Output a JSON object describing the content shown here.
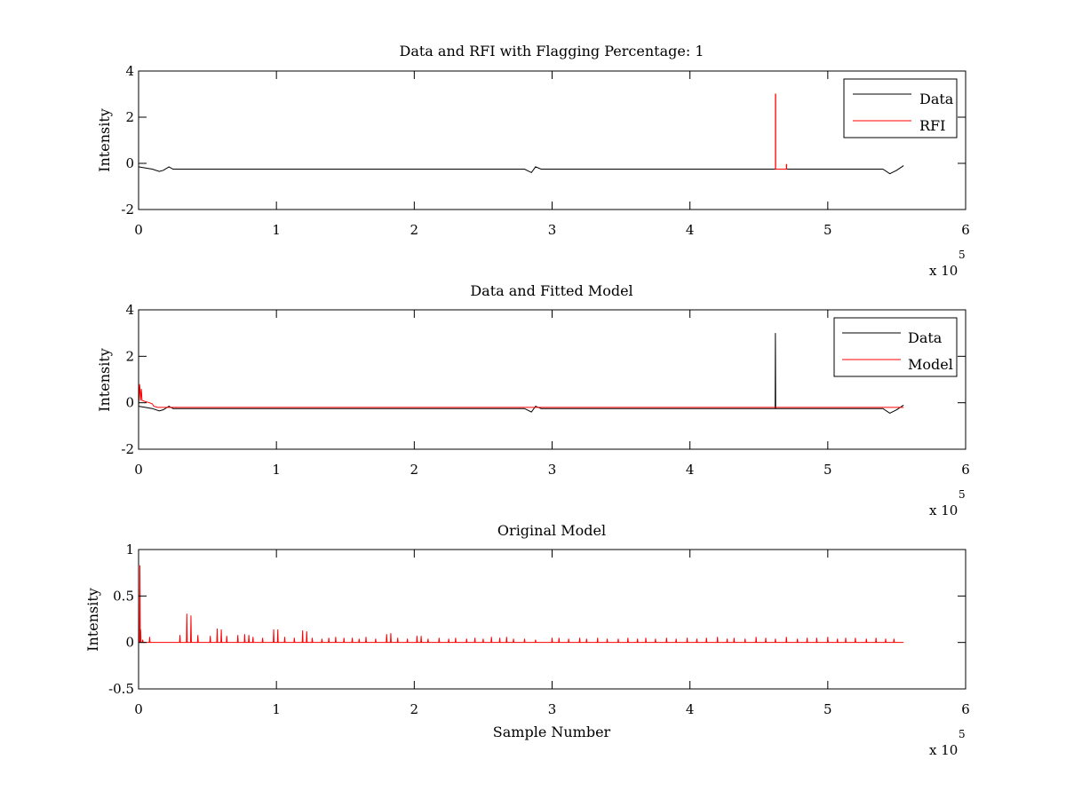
{
  "figure": {
    "background": "#ffffff"
  },
  "chart_data": [
    {
      "type": "line",
      "title": "Data and RFI with Flagging Percentage: 1",
      "xlabel": "",
      "ylabel": "Intensity",
      "xlim": [
        0,
        600000
      ],
      "ylim": [
        -2,
        4
      ],
      "xticks": [
        0,
        1,
        2,
        3,
        4,
        5,
        6
      ],
      "yticks": [
        -2,
        0,
        2,
        4
      ],
      "x_multiplier": "x 10",
      "x_multiplier_exp": "5",
      "grid": false,
      "legend": "top-right",
      "series": [
        {
          "name": "Data",
          "color": "#000000",
          "x": [
            0,
            5000,
            10000,
            15000,
            18000,
            22000,
            25000,
            60000,
            100000,
            150000,
            200000,
            250000,
            280000,
            285000,
            288000,
            292000,
            300000,
            350000,
            400000,
            450000,
            500000,
            540000,
            545000,
            550000,
            555000
          ],
          "y": [
            -0.15,
            -0.2,
            -0.25,
            -0.35,
            -0.3,
            -0.15,
            -0.25,
            -0.25,
            -0.25,
            -0.25,
            -0.25,
            -0.25,
            -0.25,
            -0.4,
            -0.15,
            -0.25,
            -0.25,
            -0.25,
            -0.25,
            -0.25,
            -0.25,
            -0.25,
            -0.45,
            -0.3,
            -0.1
          ]
        },
        {
          "name": "RFI",
          "color": "#ff0000",
          "x": [
            462000,
            462000,
            462200,
            462200,
            470000,
            470000,
            470200,
            470200
          ],
          "y": [
            -0.25,
            3.0,
            3.0,
            -0.25,
            -0.25,
            -0.05,
            -0.05,
            -0.25
          ]
        }
      ]
    },
    {
      "type": "line",
      "title": "Data and Fitted Model",
      "xlabel": "",
      "ylabel": "Intensity",
      "xlim": [
        0,
        600000
      ],
      "ylim": [
        -2,
        4
      ],
      "xticks": [
        0,
        1,
        2,
        3,
        4,
        5,
        6
      ],
      "yticks": [
        -2,
        0,
        2,
        4
      ],
      "x_multiplier": "x 10",
      "x_multiplier_exp": "5",
      "grid": false,
      "legend": "top-right",
      "series": [
        {
          "name": "Data",
          "color": "#000000",
          "x": [
            0,
            5000,
            10000,
            15000,
            18000,
            22000,
            25000,
            100000,
            200000,
            280000,
            285000,
            288000,
            292000,
            400000,
            461800,
            462000,
            462200,
            462400,
            500000,
            540000,
            545000,
            550000,
            555000
          ],
          "y": [
            -0.15,
            -0.2,
            -0.25,
            -0.35,
            -0.3,
            -0.15,
            -0.25,
            -0.25,
            -0.25,
            -0.25,
            -0.4,
            -0.15,
            -0.25,
            -0.25,
            -0.25,
            3.0,
            -0.25,
            -0.25,
            -0.25,
            -0.25,
            -0.45,
            -0.3,
            -0.1
          ]
        },
        {
          "name": "Model",
          "color": "#ff0000",
          "x": [
            0,
            800,
            1500,
            2000,
            2500,
            5000,
            8000,
            10000,
            11000,
            14000,
            20000,
            60000,
            100000,
            200000,
            300000,
            400000,
            500000,
            555000
          ],
          "y": [
            -0.2,
            0.8,
            0.1,
            0.6,
            0.1,
            0.05,
            0.0,
            -0.05,
            -0.15,
            -0.2,
            -0.2,
            -0.2,
            -0.2,
            -0.2,
            -0.2,
            -0.2,
            -0.2,
            -0.2
          ]
        }
      ]
    },
    {
      "type": "line",
      "title": "Original Model",
      "xlabel": "Sample Number",
      "ylabel": "Intensity",
      "xlim": [
        0,
        600000
      ],
      "ylim": [
        -0.5,
        1
      ],
      "xticks": [
        0,
        1,
        2,
        3,
        4,
        5,
        6
      ],
      "yticks": [
        -0.5,
        0,
        0.5,
        1
      ],
      "x_multiplier": "x 10",
      "x_multiplier_exp": "5",
      "grid": false,
      "legend": "none",
      "series": [
        {
          "color": "#ff0000",
          "x_range": [
            0,
            555000
          ],
          "baseline": 0,
          "spikes_x": [
            1000,
            1500,
            3000,
            8000,
            30000,
            35000,
            38000,
            43000,
            52000,
            57000,
            60000,
            64000,
            72000,
            77000,
            80000,
            83000,
            90000,
            98000,
            101000,
            106000,
            113000,
            119000,
            122000,
            126000,
            133000,
            138000,
            143000,
            149000,
            155000,
            160000,
            165000,
            172000,
            180000,
            183000,
            188000,
            195000,
            202000,
            205000,
            210000,
            218000,
            225000,
            230000,
            238000,
            244000,
            250000,
            256000,
            262000,
            267000,
            272000,
            280000,
            288000,
            300000,
            305000,
            312000,
            320000,
            325000,
            333000,
            340000,
            348000,
            355000,
            362000,
            368000,
            375000,
            383000,
            390000,
            398000,
            405000,
            412000,
            420000,
            427000,
            432000,
            440000,
            448000,
            455000,
            462000,
            470000,
            478000,
            485000,
            492000,
            500000,
            507000,
            513000,
            520000,
            528000,
            535000,
            542000,
            548000
          ],
          "spikes_y": [
            0.83,
            0.14,
            0.03,
            0.06,
            0.08,
            0.31,
            0.29,
            0.08,
            0.07,
            0.15,
            0.14,
            0.07,
            0.08,
            0.09,
            0.08,
            0.06,
            0.05,
            0.14,
            0.14,
            0.06,
            0.05,
            0.13,
            0.12,
            0.05,
            0.04,
            0.05,
            0.06,
            0.05,
            0.05,
            0.04,
            0.06,
            0.04,
            0.09,
            0.1,
            0.05,
            0.04,
            0.07,
            0.07,
            0.04,
            0.05,
            0.04,
            0.05,
            0.04,
            0.05,
            0.04,
            0.06,
            0.05,
            0.06,
            0.04,
            0.04,
            0.03,
            0.05,
            0.05,
            0.04,
            0.05,
            0.04,
            0.05,
            0.04,
            0.04,
            0.05,
            0.04,
            0.05,
            0.04,
            0.05,
            0.04,
            0.05,
            0.04,
            0.05,
            0.06,
            0.04,
            0.05,
            0.04,
            0.06,
            0.05,
            0.04,
            0.06,
            0.04,
            0.05,
            0.05,
            0.06,
            0.04,
            0.05,
            0.05,
            0.04,
            0.05,
            0.04,
            0.04
          ]
        }
      ]
    }
  ]
}
